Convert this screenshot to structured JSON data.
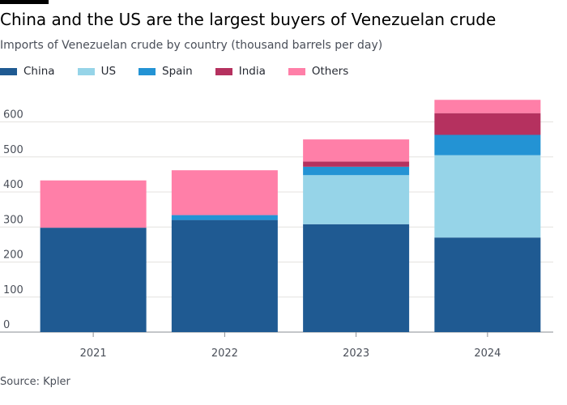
{
  "header": {
    "title": "China and the US are the largest buyers of Venezuelan crude",
    "subtitle": "Imports of Venezuelan crude by country (thousand barrels per day)"
  },
  "footer": {
    "source": "Source: Kpler"
  },
  "chart_data": {
    "type": "bar",
    "stacked": true,
    "title": "China and the US are the largest buyers of Venezuelan crude",
    "subtitle": "Imports of Venezuelan crude by country (thousand barrels per day)",
    "xlabel": "",
    "ylabel": "",
    "categories": [
      "2021",
      "2022",
      "2023",
      "2024"
    ],
    "series": [
      {
        "name": "China",
        "color": "#1f5a92",
        "values": [
          298,
          320,
          308,
          270
        ]
      },
      {
        "name": "US",
        "color": "#96d4e8",
        "values": [
          0,
          0,
          140,
          235
        ]
      },
      {
        "name": "Spain",
        "color": "#2393d4",
        "values": [
          0,
          14,
          24,
          58
        ]
      },
      {
        "name": "India",
        "color": "#b5315f",
        "values": [
          0,
          0,
          15,
          62
        ]
      },
      {
        "name": "Others",
        "color": "#ff7fa8",
        "values": [
          135,
          128,
          63,
          38
        ]
      }
    ],
    "ylim": [
      0,
      660
    ],
    "yticks": [
      0,
      100,
      200,
      300,
      400,
      500,
      600
    ],
    "grid": true,
    "legend": "top-left"
  }
}
